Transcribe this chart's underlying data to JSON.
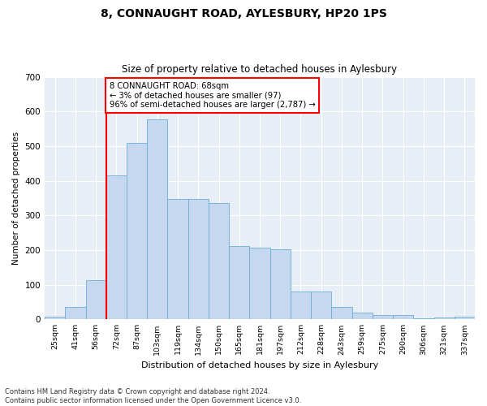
{
  "title": "8, CONNAUGHT ROAD, AYLESBURY, HP20 1PS",
  "subtitle": "Size of property relative to detached houses in Aylesbury",
  "xlabel": "Distribution of detached houses by size in Aylesbury",
  "ylabel": "Number of detached properties",
  "bar_color": "#c5d8f0",
  "bar_edge_color": "#6baed6",
  "background_color": "#e8eef5",
  "grid_color": "#ffffff",
  "categories": [
    "25sqm",
    "41sqm",
    "56sqm",
    "72sqm",
    "87sqm",
    "103sqm",
    "119sqm",
    "134sqm",
    "150sqm",
    "165sqm",
    "181sqm",
    "197sqm",
    "212sqm",
    "228sqm",
    "243sqm",
    "259sqm",
    "275sqm",
    "290sqm",
    "306sqm",
    "321sqm",
    "337sqm"
  ],
  "values": [
    8,
    35,
    113,
    415,
    510,
    578,
    347,
    347,
    335,
    212,
    208,
    203,
    80,
    80,
    35,
    20,
    12,
    12,
    4,
    5,
    8
  ],
  "ylim": [
    0,
    700
  ],
  "yticks": [
    0,
    100,
    200,
    300,
    400,
    500,
    600,
    700
  ],
  "property_line_x": 2.5,
  "annotation_text": "8 CONNAUGHT ROAD: 68sqm\n← 3% of detached houses are smaller (97)\n96% of semi-detached houses are larger (2,787) →",
  "footnote": "Contains HM Land Registry data © Crown copyright and database right 2024.\nContains public sector information licensed under the Open Government Licence v3.0."
}
